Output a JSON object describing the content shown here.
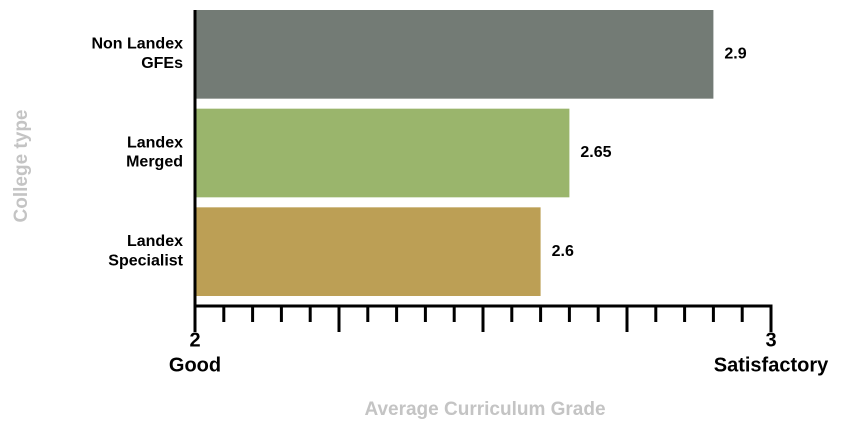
{
  "chart_data": {
    "type": "bar",
    "orientation": "horizontal",
    "xlabel": "Average Curriculum Grade",
    "ylabel": "College type",
    "categories": [
      "Non Landex\nGFEs",
      "Landex\nMerged",
      "Landex\nSpecialist"
    ],
    "values": [
      2.9,
      2.65,
      2.6
    ],
    "colors": [
      "#737b75",
      "#9ab56c",
      "#bc9f55"
    ],
    "xlim": [
      2,
      3
    ],
    "xticks": [
      {
        "value": 2,
        "label": "2",
        "sublabel": "Good"
      },
      {
        "value": 2.25,
        "label": null
      },
      {
        "value": 2.5,
        "label": null
      },
      {
        "value": 2.75,
        "label": null
      },
      {
        "value": 3,
        "label": "3",
        "sublabel": "Satisfactory"
      }
    ],
    "xminorticks": [
      2.05,
      2.1,
      2.15,
      2.2,
      2.3,
      2.35,
      2.4,
      2.45,
      2.55,
      2.6,
      2.65,
      2.7,
      2.8,
      2.85,
      2.9,
      2.95
    ]
  }
}
